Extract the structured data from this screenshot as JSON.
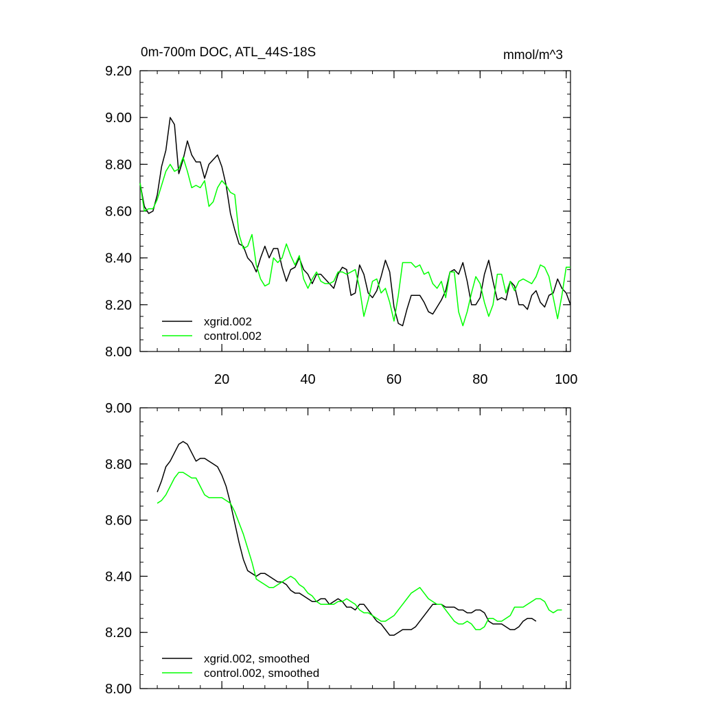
{
  "chart_data": [
    {
      "type": "line",
      "title": "0m-700m DOC, ATL_44S-18S",
      "units": "mmol/m^3",
      "xlim": [
        1,
        101
      ],
      "ylim": [
        8.0,
        9.2
      ],
      "xticks": [
        20,
        40,
        60,
        80,
        100
      ],
      "xtick_labels": [
        "20",
        "40",
        "60",
        "80",
        "100"
      ],
      "yticks": [
        8.0,
        8.2,
        8.4,
        8.6,
        8.8,
        9.0,
        9.2
      ],
      "ytick_labels": [
        "8.00",
        "8.20",
        "8.40",
        "8.60",
        "8.80",
        "9.00",
        "9.20"
      ],
      "legend_position": "bottom-left",
      "series": [
        {
          "name": "xgrid.002",
          "color": "#000000",
          "x_start": 1,
          "values": [
            8.72,
            8.62,
            8.59,
            8.6,
            8.67,
            8.79,
            8.86,
            9.0,
            8.97,
            8.76,
            8.82,
            8.9,
            8.84,
            8.81,
            8.81,
            8.74,
            8.8,
            8.82,
            8.84,
            8.79,
            8.71,
            8.59,
            8.52,
            8.46,
            8.45,
            8.4,
            8.38,
            8.34,
            8.4,
            8.45,
            8.4,
            8.44,
            8.44,
            8.36,
            8.3,
            8.35,
            8.36,
            8.4,
            8.35,
            8.33,
            8.29,
            8.33,
            8.33,
            8.31,
            8.29,
            8.27,
            8.33,
            8.36,
            8.35,
            8.24,
            8.25,
            8.37,
            8.33,
            8.25,
            8.23,
            8.26,
            8.32,
            8.39,
            8.34,
            8.19,
            8.12,
            8.11,
            8.18,
            8.24,
            8.24,
            8.24,
            8.21,
            8.17,
            8.16,
            8.19,
            8.22,
            8.26,
            8.34,
            8.35,
            8.33,
            8.38,
            8.3,
            8.2,
            8.2,
            8.23,
            8.33,
            8.39,
            8.3,
            8.22,
            8.23,
            8.22,
            8.3,
            8.28,
            8.2,
            8.2,
            8.18,
            8.24,
            8.26,
            8.21,
            8.19,
            8.24,
            8.25,
            8.31,
            8.27,
            8.25,
            8.2
          ]
        },
        {
          "name": "control.002",
          "color": "#00ff00",
          "x_start": 1,
          "values": [
            8.72,
            8.6,
            8.61,
            8.61,
            8.65,
            8.71,
            8.77,
            8.8,
            8.77,
            8.78,
            8.83,
            8.77,
            8.7,
            8.71,
            8.7,
            8.73,
            8.62,
            8.64,
            8.7,
            8.73,
            8.71,
            8.68,
            8.67,
            8.5,
            8.44,
            8.45,
            8.5,
            8.37,
            8.31,
            8.28,
            8.29,
            8.4,
            8.38,
            8.4,
            8.46,
            8.41,
            8.37,
            8.41,
            8.31,
            8.27,
            8.31,
            8.34,
            8.3,
            8.29,
            8.29,
            8.3,
            8.34,
            8.34,
            8.33,
            8.34,
            8.35,
            8.27,
            8.15,
            8.22,
            8.3,
            8.31,
            8.25,
            8.27,
            8.21,
            8.13,
            8.24,
            8.38,
            8.38,
            8.38,
            8.36,
            8.37,
            8.33,
            8.34,
            8.29,
            8.27,
            8.3,
            8.23,
            8.34,
            8.34,
            8.17,
            8.11,
            8.17,
            8.25,
            8.32,
            8.29,
            8.21,
            8.15,
            8.2,
            8.33,
            8.33,
            8.25,
            8.3,
            8.26,
            8.3,
            8.31,
            8.3,
            8.29,
            8.32,
            8.37,
            8.36,
            8.32,
            8.23,
            8.14,
            8.24,
            8.36,
            8.36
          ]
        }
      ]
    },
    {
      "type": "line",
      "xlim": [
        1,
        101
      ],
      "ylim": [
        8.0,
        9.0
      ],
      "xticks": [
        20,
        40,
        60,
        80,
        100
      ],
      "yticks": [
        8.0,
        8.2,
        8.4,
        8.6,
        8.8,
        9.0
      ],
      "ytick_labels": [
        "8.00",
        "8.20",
        "8.40",
        "8.60",
        "8.80",
        "9.00"
      ],
      "legend_position": "bottom-left",
      "series": [
        {
          "name": "xgrid.002, smoothed",
          "color": "#000000",
          "x_start": 5,
          "values": [
            8.7,
            8.74,
            8.79,
            8.81,
            8.84,
            8.87,
            8.88,
            8.87,
            8.84,
            8.81,
            8.82,
            8.82,
            8.81,
            8.8,
            8.79,
            8.76,
            8.72,
            8.66,
            8.59,
            8.52,
            8.46,
            8.42,
            8.41,
            8.4,
            8.41,
            8.41,
            8.4,
            8.39,
            8.38,
            8.38,
            8.37,
            8.35,
            8.34,
            8.34,
            8.33,
            8.32,
            8.31,
            8.31,
            8.32,
            8.32,
            8.3,
            8.31,
            8.32,
            8.31,
            8.29,
            8.29,
            8.28,
            8.3,
            8.3,
            8.28,
            8.26,
            8.24,
            8.23,
            8.21,
            8.19,
            8.19,
            8.2,
            8.21,
            8.21,
            8.21,
            8.22,
            8.24,
            8.26,
            8.28,
            8.3,
            8.3,
            8.3,
            8.29,
            8.29,
            8.29,
            8.28,
            8.28,
            8.27,
            8.27,
            8.28,
            8.28,
            8.27,
            8.24,
            8.23,
            8.23,
            8.23,
            8.22,
            8.21,
            8.21,
            8.22,
            8.24,
            8.25,
            8.25,
            8.24
          ]
        },
        {
          "name": "control.002, smoothed",
          "color": "#00ff00",
          "x_start": 5,
          "values": [
            8.66,
            8.67,
            8.69,
            8.72,
            8.75,
            8.77,
            8.77,
            8.76,
            8.75,
            8.75,
            8.72,
            8.69,
            8.68,
            8.68,
            8.68,
            8.68,
            8.67,
            8.66,
            8.63,
            8.59,
            8.55,
            8.5,
            8.45,
            8.39,
            8.38,
            8.37,
            8.36,
            8.36,
            8.37,
            8.38,
            8.39,
            8.4,
            8.39,
            8.37,
            8.36,
            8.34,
            8.33,
            8.31,
            8.3,
            8.3,
            8.3,
            8.3,
            8.31,
            8.31,
            8.32,
            8.31,
            8.3,
            8.28,
            8.27,
            8.27,
            8.26,
            8.25,
            8.24,
            8.24,
            8.25,
            8.26,
            8.28,
            8.3,
            8.32,
            8.34,
            8.35,
            8.36,
            8.34,
            8.32,
            8.31,
            8.3,
            8.3,
            8.28,
            8.26,
            8.24,
            8.23,
            8.23,
            8.24,
            8.23,
            8.21,
            8.21,
            8.22,
            8.25,
            8.25,
            8.24,
            8.24,
            8.25,
            8.26,
            8.29,
            8.29,
            8.29,
            8.3,
            8.31,
            8.32,
            8.32,
            8.31,
            8.28,
            8.27,
            8.28,
            8.28
          ]
        }
      ]
    }
  ]
}
